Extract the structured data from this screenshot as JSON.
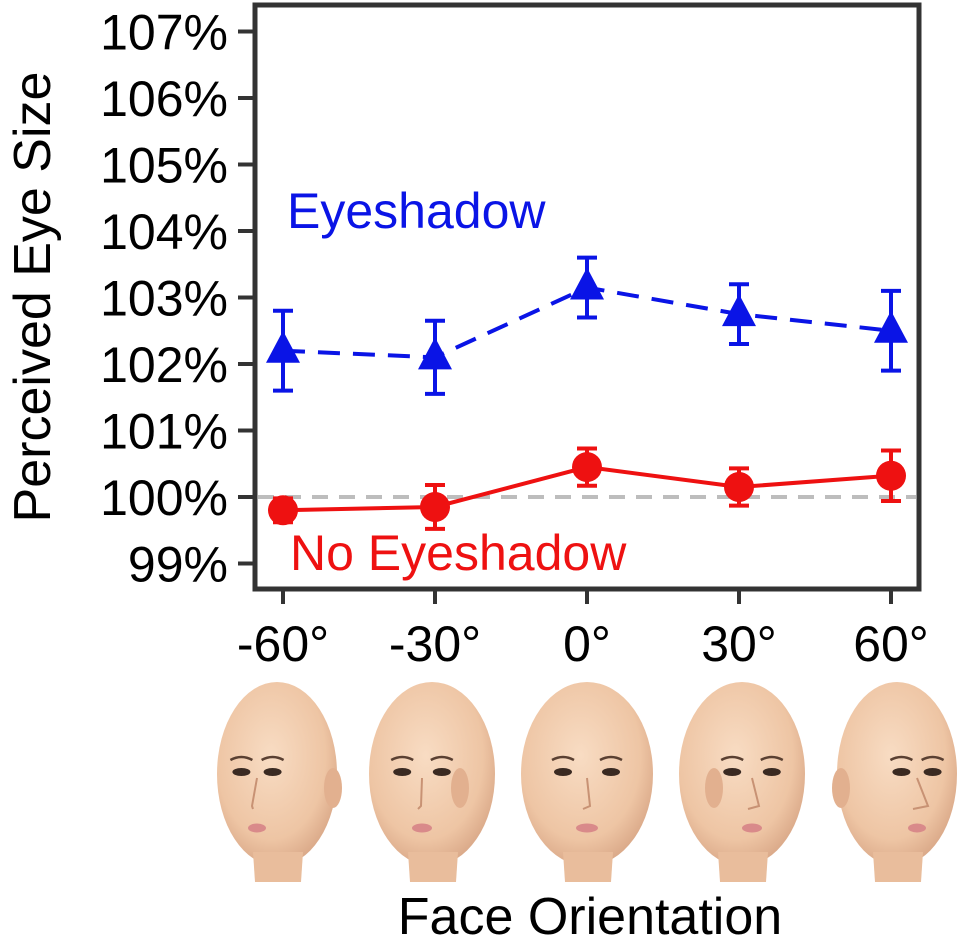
{
  "chart_data": {
    "type": "line",
    "xlabel": "Face Orientation",
    "ylabel": "Perceived Eye Size",
    "x": [
      -60,
      -30,
      0,
      30,
      60
    ],
    "x_tick_labels": [
      "-60°",
      "-30°",
      "0°",
      "30°",
      "60°"
    ],
    "y_tick_labels": [
      "99%",
      "100%",
      "101%",
      "102%",
      "103%",
      "104%",
      "105%",
      "106%",
      "107%"
    ],
    "y_ticks": [
      99,
      100,
      101,
      102,
      103,
      104,
      105,
      106,
      107
    ],
    "ylim": [
      98.6,
      107.3
    ],
    "reference_line": 100,
    "grid": false,
    "series": [
      {
        "name": "Eyeshadow",
        "values": [
          102.2,
          102.1,
          103.15,
          102.75,
          102.5
        ],
        "error": [
          0.6,
          0.55,
          0.45,
          0.45,
          0.6
        ],
        "color": "#0a14e6",
        "marker": "triangle",
        "line_style": "dashed"
      },
      {
        "name": "No Eyeshadow",
        "values": [
          99.8,
          99.85,
          100.45,
          100.15,
          100.32
        ],
        "error": [
          0.18,
          0.33,
          0.28,
          0.28,
          0.38
        ],
        "color": "#ee1111",
        "marker": "circle",
        "line_style": "solid"
      }
    ],
    "face_icons": [
      "face-left-60-icon",
      "face-left-30-icon",
      "face-front-icon",
      "face-right-30-icon",
      "face-right-60-icon"
    ]
  }
}
